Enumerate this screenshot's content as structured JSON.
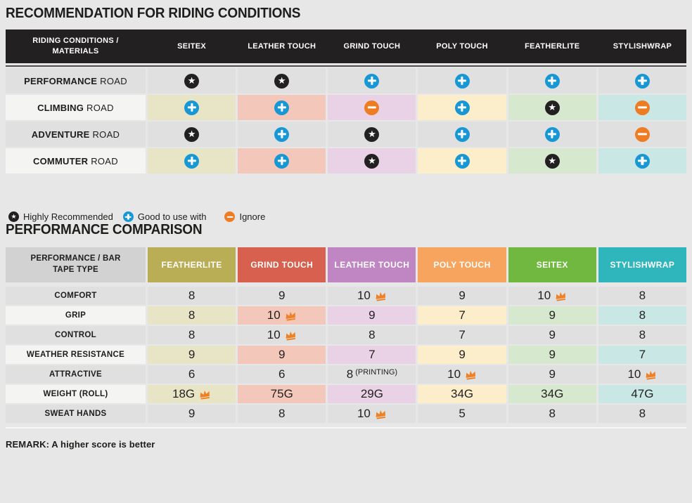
{
  "chart_data": [
    {
      "type": "table",
      "title": "RECOMMENDATION FOR RIDING CONDITIONS",
      "corner_label": "RIDING CONDITIONS / MATERIALS",
      "columns": [
        "SEITEX",
        "LEATHER TOUCH",
        "GRIND TOUCH",
        "POLY TOUCH",
        "FEATHERLITE",
        "STYLISHWRAP"
      ],
      "rows": [
        {
          "label_bold": "PERFORMANCE",
          "label_rest": "ROAD",
          "values": [
            "star",
            "star",
            "plus",
            "plus",
            "plus",
            "plus"
          ]
        },
        {
          "label_bold": "CLIMBING",
          "label_rest": "ROAD",
          "values": [
            "plus",
            "plus",
            "minus",
            "plus",
            "star",
            "minus"
          ]
        },
        {
          "label_bold": "ADVENTURE",
          "label_rest": "ROAD",
          "values": [
            "star",
            "plus",
            "star",
            "plus",
            "plus",
            "minus"
          ]
        },
        {
          "label_bold": "COMMUTER",
          "label_rest": "ROAD",
          "values": [
            "plus",
            "plus",
            "star",
            "plus",
            "star",
            "plus"
          ]
        }
      ],
      "legend": [
        {
          "icon": "star",
          "label": "Highly Recommended"
        },
        {
          "icon": "plus",
          "label": "Good to use with"
        },
        {
          "icon": "minus",
          "label": "Ignore"
        }
      ]
    },
    {
      "type": "table",
      "title": "PERFORMANCE COMPARISON",
      "corner_label": "PERFORMANCE / BAR TAPE TYPE",
      "columns": [
        {
          "label": "FEATHERLITE",
          "color": "#b9ae55"
        },
        {
          "label": "GRIND TOUCH",
          "color": "#d7604f"
        },
        {
          "label": "LEATHER TOUCH",
          "color": "#bf86c3"
        },
        {
          "label": "POLY TOUCH",
          "color": "#f7a55e"
        },
        {
          "label": "SEITEX",
          "color": "#70b840"
        },
        {
          "label": "STYLISHWRAP",
          "color": "#2fb5bc"
        }
      ],
      "rows": [
        {
          "label": "COMFORT",
          "values": [
            {
              "v": "8"
            },
            {
              "v": "9"
            },
            {
              "v": "10",
              "crown": true
            },
            {
              "v": "9"
            },
            {
              "v": "10",
              "crown": true
            },
            {
              "v": "8"
            }
          ]
        },
        {
          "label": "GRIP",
          "values": [
            {
              "v": "8"
            },
            {
              "v": "10",
              "crown": true
            },
            {
              "v": "9"
            },
            {
              "v": "7"
            },
            {
              "v": "9"
            },
            {
              "v": "8"
            }
          ]
        },
        {
          "label": "CONTROL",
          "values": [
            {
              "v": "8"
            },
            {
              "v": "10",
              "crown": true
            },
            {
              "v": "8"
            },
            {
              "v": "7"
            },
            {
              "v": "9"
            },
            {
              "v": "8"
            }
          ]
        },
        {
          "label": "WEATHER RESISTANCE",
          "values": [
            {
              "v": "9"
            },
            {
              "v": "9"
            },
            {
              "v": "7"
            },
            {
              "v": "9"
            },
            {
              "v": "9"
            },
            {
              "v": "7"
            }
          ]
        },
        {
          "label": "ATTRACTIVE",
          "values": [
            {
              "v": "6"
            },
            {
              "v": "6"
            },
            {
              "v": "8",
              "suffix": "(PRINTING)"
            },
            {
              "v": "10",
              "crown": true
            },
            {
              "v": "9"
            },
            {
              "v": "10",
              "crown": true
            }
          ]
        },
        {
          "label": "WEIGHT (ROLL)",
          "values": [
            {
              "v": "18G",
              "crown": true
            },
            {
              "v": "75G"
            },
            {
              "v": "29G"
            },
            {
              "v": "34G"
            },
            {
              "v": "34G"
            },
            {
              "v": "47G"
            }
          ]
        },
        {
          "label": "SWEAT HANDS",
          "values": [
            {
              "v": "9"
            },
            {
              "v": "8"
            },
            {
              "v": "10",
              "crown": true
            },
            {
              "v": "5"
            },
            {
              "v": "8"
            },
            {
              "v": "8"
            }
          ]
        }
      ],
      "remark": "REMARK: A higher score is better"
    }
  ],
  "icons": {
    "star": {
      "name": "highly-recommended-star-icon",
      "glyph": "★",
      "color": "#232021"
    },
    "plus": {
      "name": "good-to-use-plus-icon",
      "color": "#1798d5"
    },
    "minus": {
      "name": "ignore-minus-icon",
      "color": "#ee7c23"
    }
  },
  "colors": {
    "page_bg": "#e7e7e7",
    "table1_header_bg": "#232021",
    "gray_row": "#e0e0e1",
    "light_label_cell": "#f4f4f3",
    "crown": "#ef8125",
    "tints": [
      "#e8e5c7",
      "#f3c8ba",
      "#e9d2e5",
      "#fceeca",
      "#d6e8cd",
      "#c9e7e4"
    ]
  }
}
